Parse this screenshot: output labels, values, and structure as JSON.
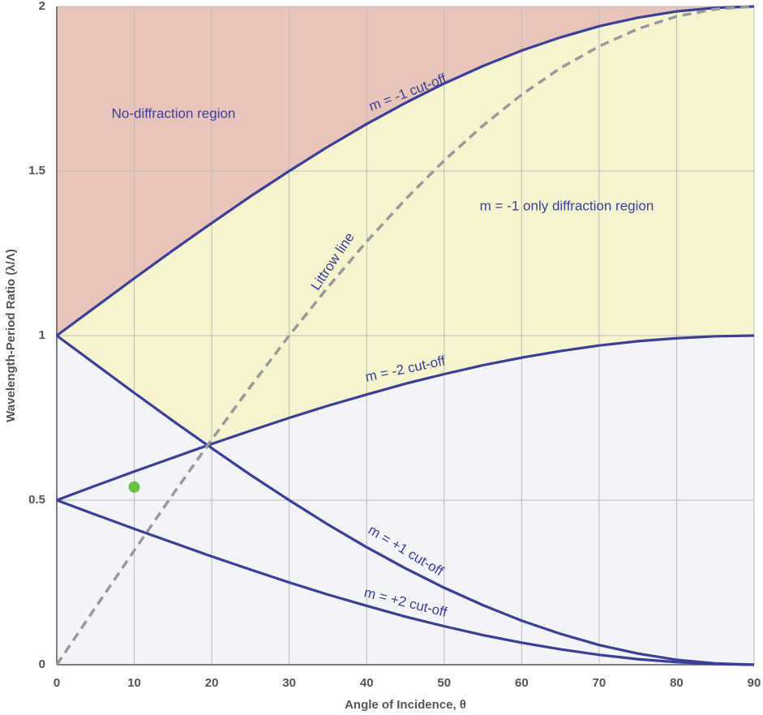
{
  "chart_data": {
    "type": "line",
    "x_label": "Angle of Incidence, θ",
    "y_label": "Wavelength-Period Ratio (λ/Λ)",
    "x": [
      0,
      5,
      10,
      15,
      20,
      25,
      30,
      35,
      40,
      45,
      50,
      55,
      60,
      65,
      70,
      75,
      80,
      85,
      90
    ],
    "series": [
      {
        "name": "m = -1 cut-off",
        "color": "#3b3f98",
        "dashed": false,
        "values": [
          1,
          1.087,
          1.174,
          1.259,
          1.342,
          1.423,
          1.5,
          1.574,
          1.643,
          1.707,
          1.766,
          1.819,
          1.866,
          1.906,
          1.94,
          1.966,
          1.985,
          1.996,
          2
        ]
      },
      {
        "name": "m = -2 cut-off",
        "color": "#3b3f98",
        "dashed": false,
        "values": [
          0.5,
          0.544,
          0.587,
          0.629,
          0.671,
          0.711,
          0.75,
          0.787,
          0.821,
          0.854,
          0.883,
          0.91,
          0.933,
          0.953,
          0.97,
          0.983,
          0.992,
          0.998,
          1
        ]
      },
      {
        "name": "m = +1 cut-off",
        "color": "#3b3f98",
        "dashed": false,
        "values": [
          1,
          0.913,
          0.826,
          0.741,
          0.658,
          0.577,
          0.5,
          0.426,
          0.357,
          0.293,
          0.234,
          0.181,
          0.134,
          0.094,
          0.06,
          0.034,
          0.015,
          0.004,
          0
        ]
      },
      {
        "name": "m = +2 cut-off",
        "color": "#3b3f98",
        "dashed": false,
        "values": [
          0.5,
          0.456,
          0.413,
          0.371,
          0.329,
          0.289,
          0.25,
          0.213,
          0.179,
          0.146,
          0.117,
          0.09,
          0.067,
          0.047,
          0.03,
          0.017,
          0.008,
          0.002,
          0
        ]
      },
      {
        "name": "Littrow line",
        "color": "#999999",
        "dashed": true,
        "values": [
          0,
          0.174,
          0.347,
          0.518,
          0.684,
          0.845,
          1,
          1.147,
          1.286,
          1.414,
          1.532,
          1.638,
          1.732,
          1.813,
          1.879,
          1.932,
          1.97,
          1.992,
          2
        ]
      }
    ],
    "points": [
      {
        "x": 10,
        "y": 0.54,
        "color": "#6abf45"
      }
    ],
    "annotations": [
      "No-diffraction region",
      "m = -1 only diffraction region"
    ],
    "region_colors": [
      "#e8c4ba",
      "#f6f4cf",
      "#f3f4f8"
    ],
    "xlim": [
      0,
      90
    ],
    "xticks": [
      0,
      10,
      20,
      30,
      40,
      50,
      60,
      70,
      80,
      90
    ],
    "ylim": [
      0,
      2
    ],
    "yticks": [
      0,
      0.5,
      1,
      1.5,
      2
    ],
    "grid": true
  }
}
